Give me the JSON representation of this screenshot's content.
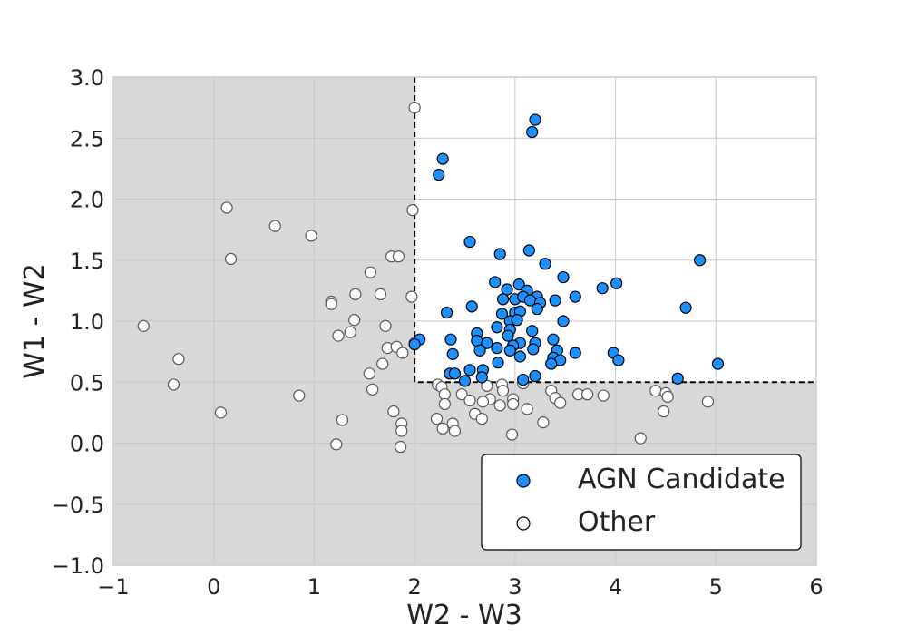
{
  "chart_data": {
    "type": "scatter",
    "title": "",
    "xlabel": "W2 - W3",
    "ylabel": "W1 - W2",
    "xlim": [
      -1,
      6
    ],
    "ylim": [
      -1,
      3
    ],
    "xticks": [
      "−1",
      "0",
      "1",
      "2",
      "3",
      "4",
      "5",
      "6"
    ],
    "xtick_values": [
      -1,
      0,
      1,
      2,
      3,
      4,
      5,
      6
    ],
    "yticks": [
      "−1.0",
      "−0.5",
      "0.0",
      "0.5",
      "1.0",
      "1.5",
      "2.0",
      "2.5",
      "3.0"
    ],
    "ytick_values": [
      -1.0,
      -0.5,
      0.0,
      0.5,
      1.0,
      1.5,
      2.0,
      2.5,
      3.0
    ],
    "grid": true,
    "legend_position": "lower-right",
    "selection_region": {
      "x_min": 2.0,
      "y_min": 0.5,
      "x_max": 6,
      "y_max": 3.0
    },
    "colors": {
      "agn_fill": "#1e8fff",
      "other_fill": "#ffffff",
      "marker_edge": "#000000",
      "other_edge": "#555555",
      "shaded_region": "#d8d8d8",
      "grid": "#c8c8c8"
    },
    "series": [
      {
        "name": "AGN Candidate",
        "points": [
          [
            3.2,
            2.65
          ],
          [
            3.17,
            2.55
          ],
          [
            2.28,
            2.33
          ],
          [
            2.24,
            2.2
          ],
          [
            2.55,
            1.65
          ],
          [
            2.85,
            1.55
          ],
          [
            3.14,
            1.58
          ],
          [
            3.3,
            1.47
          ],
          [
            4.84,
            1.5
          ],
          [
            3.48,
            1.36
          ],
          [
            2.8,
            1.32
          ],
          [
            3.04,
            1.3
          ],
          [
            3.12,
            1.25
          ],
          [
            2.92,
            1.26
          ],
          [
            3.22,
            1.2
          ],
          [
            3.6,
            1.2
          ],
          [
            3.87,
            1.27
          ],
          [
            4.01,
            1.31
          ],
          [
            2.88,
            1.18
          ],
          [
            3.0,
            1.18
          ],
          [
            3.08,
            1.2
          ],
          [
            3.15,
            1.17
          ],
          [
            3.25,
            1.15
          ],
          [
            3.4,
            1.17
          ],
          [
            4.7,
            1.11
          ],
          [
            2.57,
            1.12
          ],
          [
            2.32,
            1.07
          ],
          [
            2.87,
            1.06
          ],
          [
            3.0,
            1.07
          ],
          [
            3.05,
            1.08
          ],
          [
            3.22,
            1.1
          ],
          [
            2.95,
            1.0
          ],
          [
            3.02,
            1.01
          ],
          [
            3.48,
            1.0
          ],
          [
            2.05,
            0.85
          ],
          [
            2.0,
            0.81
          ],
          [
            2.82,
            0.95
          ],
          [
            2.95,
            0.93
          ],
          [
            2.62,
            0.9
          ],
          [
            2.36,
            0.85
          ],
          [
            2.93,
            0.88
          ],
          [
            3.17,
            0.92
          ],
          [
            2.62,
            0.84
          ],
          [
            2.72,
            0.82
          ],
          [
            3.05,
            0.82
          ],
          [
            2.98,
            0.8
          ],
          [
            3.38,
            0.85
          ],
          [
            3.2,
            0.82
          ],
          [
            2.82,
            0.78
          ],
          [
            2.65,
            0.76
          ],
          [
            2.95,
            0.76
          ],
          [
            3.18,
            0.77
          ],
          [
            3.42,
            0.76
          ],
          [
            3.6,
            0.74
          ],
          [
            3.98,
            0.74
          ],
          [
            2.38,
            0.73
          ],
          [
            3.05,
            0.71
          ],
          [
            3.38,
            0.7
          ],
          [
            3.45,
            0.68
          ],
          [
            4.03,
            0.68
          ],
          [
            3.36,
            0.65
          ],
          [
            2.83,
            0.66
          ],
          [
            5.02,
            0.65
          ],
          [
            2.68,
            0.6
          ],
          [
            2.55,
            0.6
          ],
          [
            2.35,
            0.57
          ],
          [
            2.4,
            0.57
          ],
          [
            2.67,
            0.54
          ],
          [
            3.2,
            0.55
          ],
          [
            4.62,
            0.53
          ],
          [
            2.5,
            0.51
          ],
          [
            3.08,
            0.52
          ]
        ]
      },
      {
        "name": "Other",
        "points": [
          [
            2.0,
            2.75
          ],
          [
            0.13,
            1.93
          ],
          [
            1.98,
            1.91
          ],
          [
            0.61,
            1.78
          ],
          [
            0.97,
            1.7
          ],
          [
            0.17,
            1.51
          ],
          [
            1.77,
            1.53
          ],
          [
            1.84,
            1.53
          ],
          [
            1.56,
            1.4
          ],
          [
            1.41,
            1.22
          ],
          [
            1.66,
            1.22
          ],
          [
            1.97,
            1.2
          ],
          [
            1.17,
            1.16
          ],
          [
            1.17,
            1.14
          ],
          [
            1.4,
            1.01
          ],
          [
            -0.7,
            0.96
          ],
          [
            1.71,
            0.96
          ],
          [
            1.36,
            0.91
          ],
          [
            1.24,
            0.88
          ],
          [
            2.0,
            0.82
          ],
          [
            1.73,
            0.78
          ],
          [
            1.82,
            0.79
          ],
          [
            1.88,
            0.74
          ],
          [
            -0.35,
            0.69
          ],
          [
            1.68,
            0.65
          ],
          [
            1.55,
            0.57
          ],
          [
            -0.4,
            0.48
          ],
          [
            2.23,
            0.48
          ],
          [
            2.27,
            0.46
          ],
          [
            2.72,
            0.47
          ],
          [
            2.87,
            0.48
          ],
          [
            3.08,
            0.49
          ],
          [
            1.58,
            0.44
          ],
          [
            3.36,
            0.43
          ],
          [
            4.4,
            0.43
          ],
          [
            4.5,
            0.41
          ],
          [
            2.3,
            0.4
          ],
          [
            2.88,
            0.43
          ],
          [
            0.85,
            0.39
          ],
          [
            2.47,
            0.4
          ],
          [
            3.63,
            0.4
          ],
          [
            3.72,
            0.4
          ],
          [
            3.88,
            0.39
          ],
          [
            4.52,
            0.38
          ],
          [
            2.75,
            0.36
          ],
          [
            2.98,
            0.36
          ],
          [
            3.4,
            0.37
          ],
          [
            2.55,
            0.35
          ],
          [
            2.68,
            0.34
          ],
          [
            3.45,
            0.33
          ],
          [
            4.92,
            0.34
          ],
          [
            2.3,
            0.32
          ],
          [
            2.85,
            0.31
          ],
          [
            2.98,
            0.32
          ],
          [
            3.12,
            0.28
          ],
          [
            1.79,
            0.26
          ],
          [
            0.07,
            0.25
          ],
          [
            4.48,
            0.26
          ],
          [
            2.6,
            0.24
          ],
          [
            2.22,
            0.2
          ],
          [
            2.67,
            0.2
          ],
          [
            1.28,
            0.19
          ],
          [
            1.87,
            0.16
          ],
          [
            2.38,
            0.16
          ],
          [
            3.28,
            0.17
          ],
          [
            2.28,
            0.12
          ],
          [
            1.87,
            0.1
          ],
          [
            2.4,
            0.1
          ],
          [
            2.97,
            0.07
          ],
          [
            4.25,
            0.04
          ],
          [
            1.22,
            -0.01
          ],
          [
            1.86,
            -0.03
          ]
        ]
      }
    ]
  }
}
